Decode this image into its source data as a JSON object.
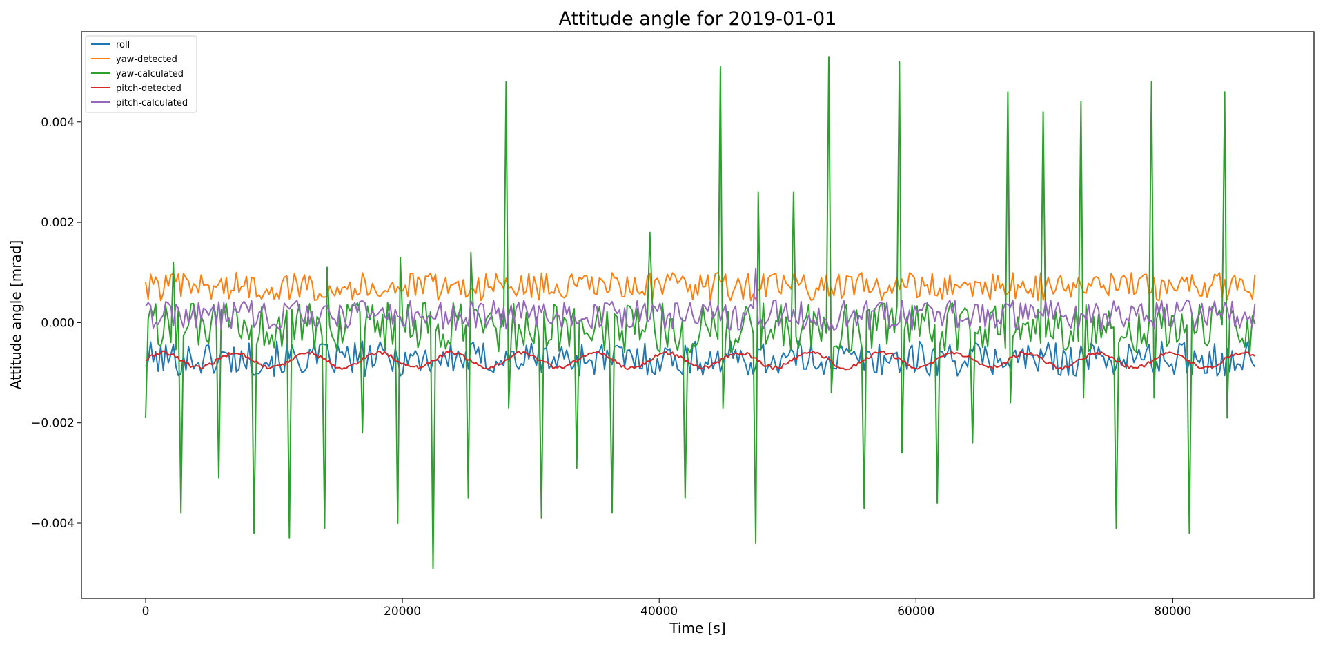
{
  "chart_data": {
    "type": "line",
    "title": "Attitude angle for 2019-01-01",
    "xlabel": "Time [s]",
    "ylabel": "Attitude angle [mrad]",
    "xlim": [
      -5000,
      91000
    ],
    "ylim": [
      -0.0055,
      0.0058
    ],
    "x_ticks": [
      0,
      20000,
      40000,
      60000,
      80000
    ],
    "x_tick_labels": [
      "0",
      "20000",
      "40000",
      "60000",
      "80000"
    ],
    "y_ticks": [
      -0.004,
      -0.002,
      0.0,
      0.002,
      0.004
    ],
    "y_tick_labels": [
      "−0.004",
      "−0.002",
      "0.000",
      "0.002",
      "0.004"
    ],
    "legend_position": "top-left",
    "grid": false,
    "series": [
      {
        "name": "roll",
        "color": "#1f77b4",
        "kind": "noise",
        "base": -0.00072,
        "amp": 0.00035,
        "spikes": []
      },
      {
        "name": "yaw-detected",
        "color": "#ff7f0e",
        "kind": "noise",
        "base": 0.00072,
        "amp": 0.00028,
        "spikes": []
      },
      {
        "name": "yaw-calculated",
        "color": "#2ca02c",
        "kind": "spiky",
        "base": -0.0001,
        "amp": 0.0005,
        "spikes": [
          [
            0,
            -0.0019
          ],
          [
            2200,
            0.0012
          ],
          [
            2800,
            -0.0038
          ],
          [
            5600,
            -0.0031
          ],
          [
            8400,
            -0.0042
          ],
          [
            11200,
            -0.0043
          ],
          [
            14000,
            -0.0041
          ],
          [
            14100,
            0.0011
          ],
          [
            16800,
            -0.0022
          ],
          [
            19600,
            -0.004
          ],
          [
            19800,
            0.0013
          ],
          [
            22400,
            -0.0049
          ],
          [
            25200,
            -0.0035
          ],
          [
            25400,
            0.0014
          ],
          [
            28000,
            0.0048
          ],
          [
            28200,
            -0.0017
          ],
          [
            30800,
            -0.0039
          ],
          [
            33600,
            -0.0029
          ],
          [
            36400,
            -0.0038
          ],
          [
            39200,
            0.0018
          ],
          [
            42000,
            -0.0035
          ],
          [
            44800,
            0.0051
          ],
          [
            45000,
            -0.0017
          ],
          [
            47600,
            -0.0044
          ],
          [
            47800,
            0.0026
          ],
          [
            50400,
            0.0026
          ],
          [
            53200,
            0.0053
          ],
          [
            53400,
            -0.0014
          ],
          [
            56000,
            -0.0037
          ],
          [
            58800,
            0.0052
          ],
          [
            59000,
            -0.0026
          ],
          [
            61600,
            -0.0036
          ],
          [
            64400,
            -0.0024
          ],
          [
            67200,
            0.0046
          ],
          [
            67400,
            -0.0016
          ],
          [
            70000,
            0.0042
          ],
          [
            72800,
            0.0044
          ],
          [
            73000,
            -0.0015
          ],
          [
            75600,
            -0.0041
          ],
          [
            78400,
            0.0048
          ],
          [
            78600,
            -0.0015
          ],
          [
            81200,
            -0.0042
          ],
          [
            84000,
            0.0046
          ],
          [
            84200,
            -0.0019
          ]
        ]
      },
      {
        "name": "pitch-detected",
        "color": "#d62728",
        "kind": "wave",
        "base": -0.00075,
        "amp": 0.00015,
        "spikes": []
      },
      {
        "name": "pitch-calculated",
        "color": "#9467bd",
        "kind": "noise",
        "base": 0.00015,
        "amp": 0.0003,
        "spikes": [
          [
            47600,
            0.00108
          ]
        ]
      }
    ],
    "x_range_data": [
      0,
      86400
    ]
  }
}
